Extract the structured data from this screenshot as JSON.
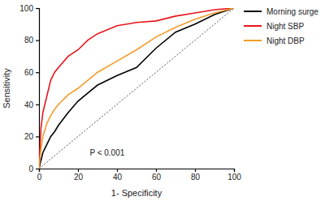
{
  "chart_data": {
    "type": "line",
    "x_label": "1- Specificity",
    "y_label": "Sensitivity",
    "annotation": "P < 0.001",
    "x": [
      0,
      1,
      2,
      4,
      6,
      8,
      10,
      15,
      20,
      25,
      30,
      40,
      50,
      60,
      70,
      80,
      90,
      100
    ],
    "series": [
      {
        "name": "Morning surge",
        "color": "#000000",
        "values": [
          0,
          5,
          10,
          15,
          20,
          23,
          27,
          35,
          42,
          47,
          52,
          58,
          63,
          75,
          85,
          90,
          96,
          100
        ]
      },
      {
        "name": "Night SBP",
        "color": "#e8141c",
        "values": [
          0,
          25,
          35,
          45,
          55,
          60,
          63,
          70,
          74,
          80,
          84,
          89,
          91,
          92,
          95,
          97,
          99,
          100
        ]
      },
      {
        "name": "Night DBP",
        "color": "#f39c2a",
        "values": [
          0,
          12,
          20,
          28,
          33,
          37,
          40,
          46,
          50,
          55,
          60,
          67,
          74,
          82,
          88,
          93,
          97,
          100
        ]
      }
    ],
    "xlim": [
      0,
      100
    ],
    "xticks": [
      0,
      20,
      40,
      60,
      80,
      100
    ],
    "ylim": [
      0,
      100
    ],
    "yticks": [
      0,
      20,
      40,
      60,
      80,
      100
    ],
    "legend": "top-right"
  }
}
